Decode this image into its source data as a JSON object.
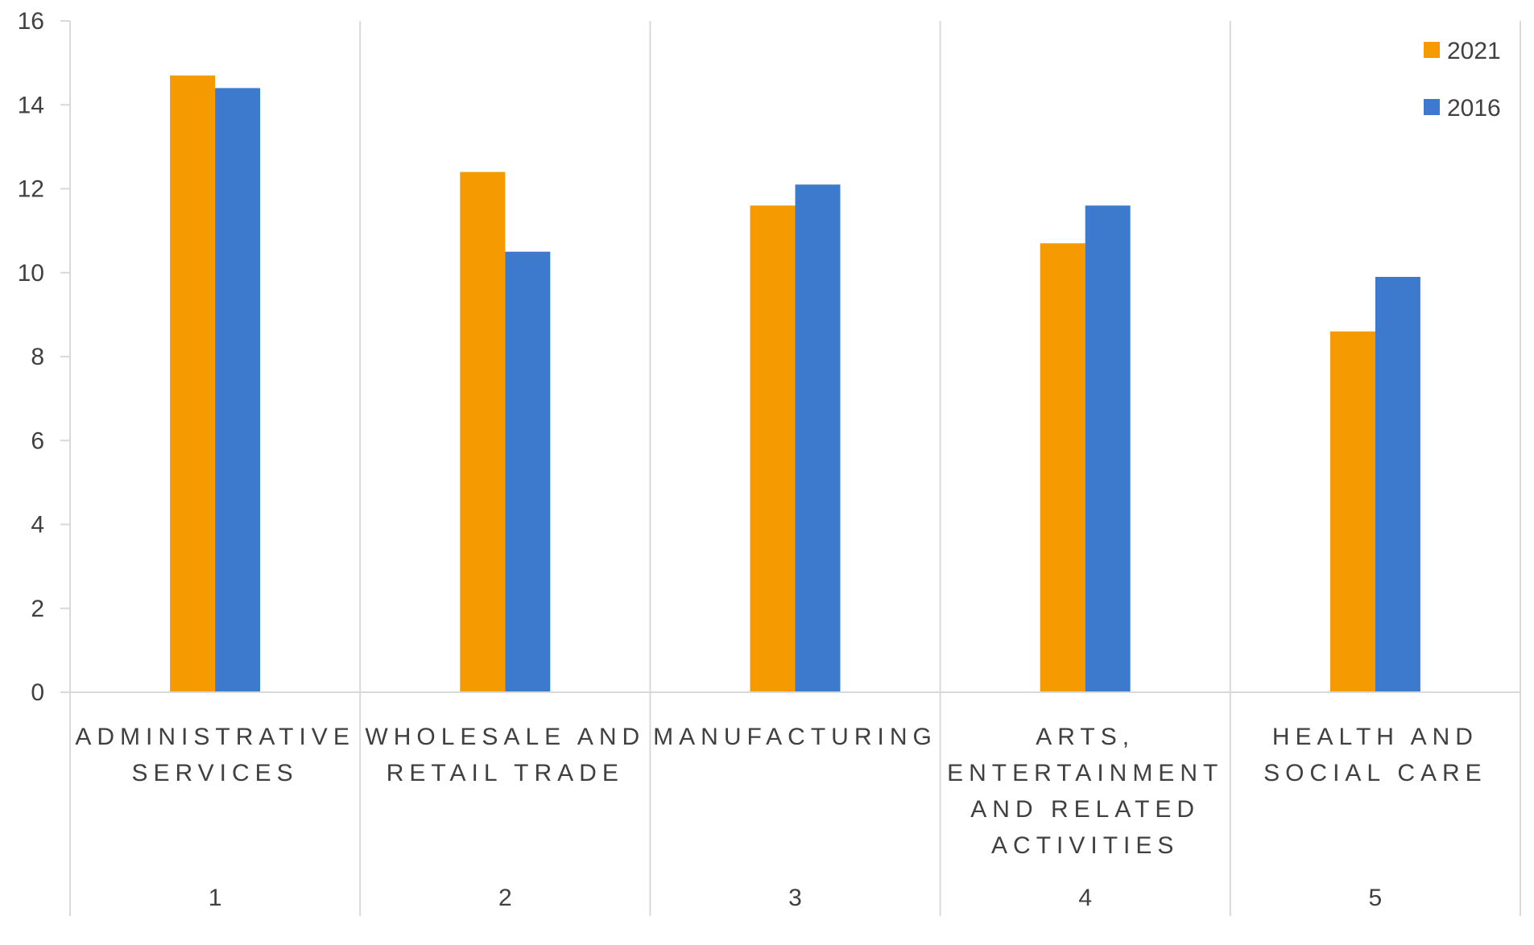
{
  "chart_data": {
    "type": "bar",
    "title": "",
    "xlabel": "",
    "ylabel": "",
    "ylim": [
      0,
      16
    ],
    "yticks": [
      0,
      2,
      4,
      6,
      8,
      10,
      12,
      14,
      16
    ],
    "grid": "vertical category separators",
    "legend_position": "top-right",
    "categories": [
      {
        "rank": "1",
        "label_lines": [
          "ADMINISTRATIVE",
          "SERVICES"
        ]
      },
      {
        "rank": "2",
        "label_lines": [
          "WHOLESALE AND",
          "RETAIL TRADE"
        ]
      },
      {
        "rank": "3",
        "label_lines": [
          "MANUFACTURING"
        ]
      },
      {
        "rank": "4",
        "label_lines": [
          "ARTS,",
          "ENTERTAINMENT",
          "AND RELATED",
          "ACTIVITIES"
        ]
      },
      {
        "rank": "5",
        "label_lines": [
          "HEALTH AND",
          "SOCIAL CARE"
        ]
      }
    ],
    "series": [
      {
        "name": "2021",
        "color": "#F59A00",
        "values": [
          14.7,
          12.4,
          11.6,
          10.7,
          8.6
        ]
      },
      {
        "name": "2016",
        "color": "#3D7ACE",
        "values": [
          14.4,
          10.5,
          12.1,
          11.6,
          9.9
        ]
      }
    ]
  }
}
